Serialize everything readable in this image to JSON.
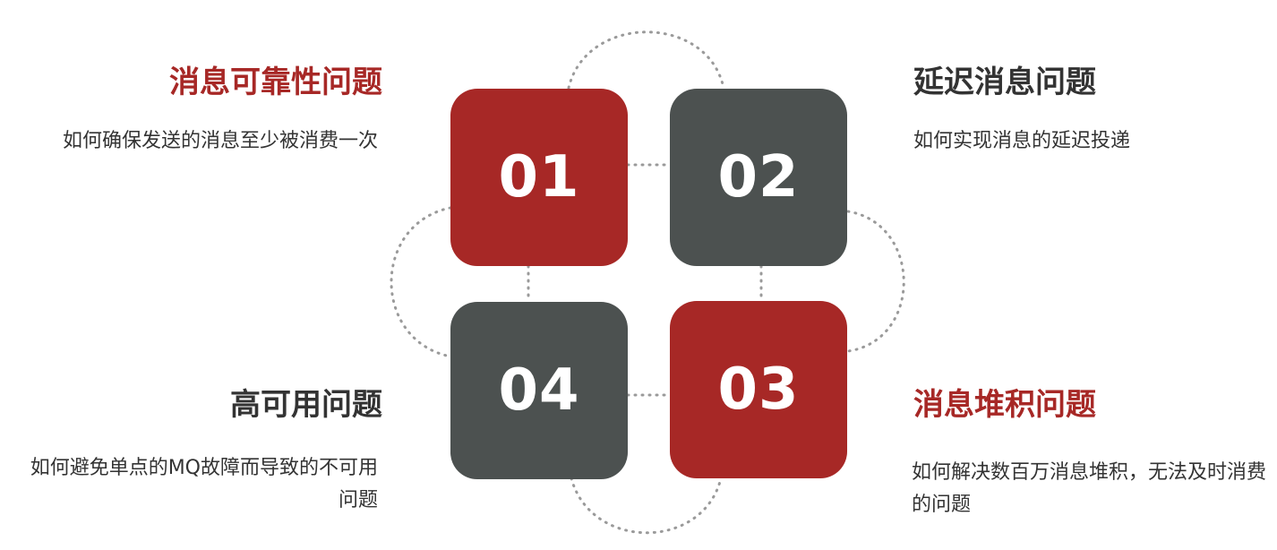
{
  "colors": {
    "red": "#a72826",
    "gray": "#4c5150",
    "dotted": "#9a9a9a",
    "dark_text": "#333333"
  },
  "tiles": [
    {
      "number": "01",
      "color": "red"
    },
    {
      "number": "02",
      "color": "gray"
    },
    {
      "number": "03",
      "color": "red"
    },
    {
      "number": "04",
      "color": "gray"
    }
  ],
  "items": [
    {
      "title": "消息可靠性问题",
      "desc": "如何确保发送的消息至少被消费一次"
    },
    {
      "title": "延迟消息问题",
      "desc": "如何实现消息的延迟投递"
    },
    {
      "title": "消息堆积问题",
      "desc": "如何解决数百万消息堆积，无法及时消费的问题"
    },
    {
      "title": "高可用问题",
      "desc": "如何避免单点的MQ故障而导致的不可用问题"
    }
  ]
}
